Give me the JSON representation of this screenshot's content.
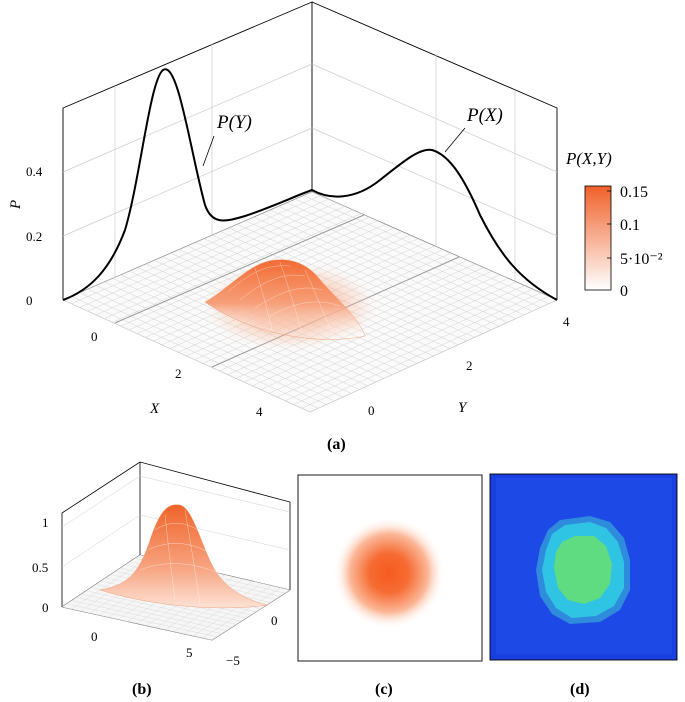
{
  "panel_a": {
    "caption": "(a)",
    "z_axis_label": "P",
    "z_ticks": [
      "0",
      "0.2",
      "0.4"
    ],
    "x_axis_label": "X",
    "x_ticks": [
      "0",
      "2",
      "4"
    ],
    "y_axis_label": "Y",
    "y_ticks": [
      "0",
      "2",
      "4"
    ],
    "curve_label_y": "P(Y)",
    "curve_label_x": "P(X)",
    "colorbar_title": "P(X,Y)",
    "colorbar_ticks": [
      "0.15",
      "0.1",
      "5·10⁻²",
      "0"
    ],
    "colors": {
      "high": "#f26b33",
      "low": "#ffffff",
      "grid": "#c8c8c8",
      "curve": "#000000"
    }
  },
  "panel_b": {
    "caption": "(b)",
    "z_ticks": [
      "0",
      "0.5",
      "1"
    ],
    "x_ticks": [
      "0",
      "5"
    ],
    "y_ticks": [
      "0",
      "−5"
    ]
  },
  "panel_c": {
    "caption": "(c)"
  },
  "panel_d": {
    "caption": "(d)",
    "colors": {
      "outer": "#1a3fe0",
      "ring": "#31c4e6",
      "center": "#5fdc82"
    }
  }
}
